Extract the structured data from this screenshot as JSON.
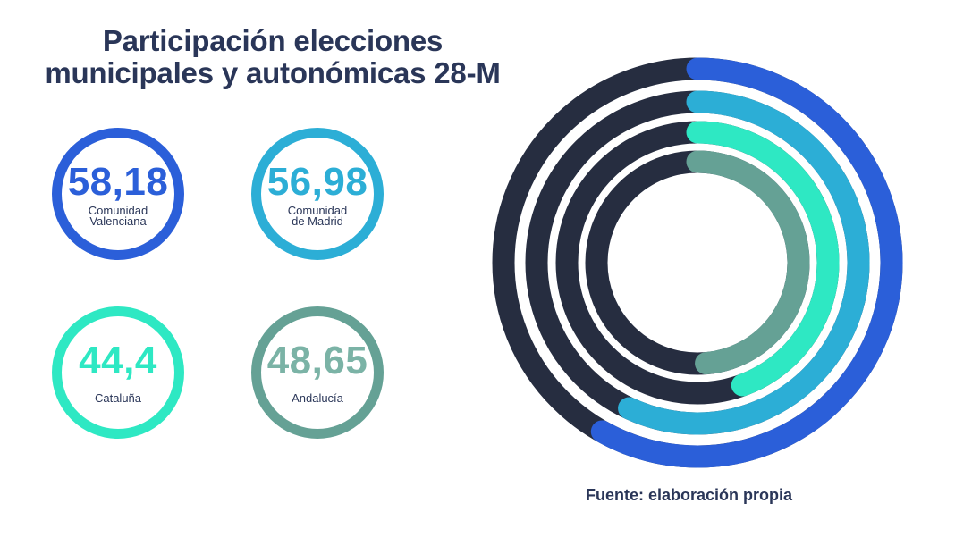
{
  "title": {
    "line1": "Participación elecciones",
    "line2": "municipales y autonómicas 28-M"
  },
  "stats": [
    {
      "value": "58,18",
      "label": "Comunidad\nValenciana",
      "color": "#2b5fd9"
    },
    {
      "value": "56,98",
      "label": "Comunidad\nde Madrid",
      "color": "#2caed6"
    },
    {
      "value": "44,4",
      "label": "Cataluña",
      "color": "#2ee8c3"
    },
    {
      "value": "48,65",
      "label": "Andalucía",
      "color": "#65a195"
    }
  ],
  "chart_data": {
    "type": "radial-bar",
    "title": "Participación elecciones municipales y autonómicas 28-M",
    "unit": "%",
    "max": 100,
    "track_color": "#262d40",
    "series": [
      {
        "name": "Comunidad Valenciana",
        "value": 58.18,
        "color": "#2b5fd9"
      },
      {
        "name": "Comunidad de Madrid",
        "value": 56.98,
        "color": "#2caed6"
      },
      {
        "name": "Cataluña",
        "value": 44.4,
        "color": "#2ee8c3"
      },
      {
        "name": "Andalucía",
        "value": 48.65,
        "color": "#65a195"
      }
    ]
  },
  "source": "Fuente: elaboración propia"
}
